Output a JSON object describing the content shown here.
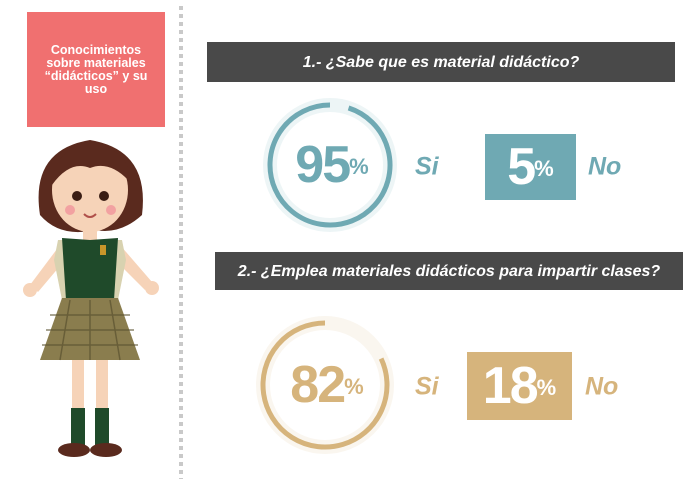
{
  "sidebar_title": "Conocimientos sobre materiales “didácticos” y su uso",
  "questions": [
    {
      "title": "1.- ¿Sabe que es material didáctico?",
      "color": "#6fa9b3",
      "yes": {
        "value": 95,
        "unit": "%",
        "label": "Si"
      },
      "no": {
        "value": 5,
        "unit": "%",
        "label": "No"
      }
    },
    {
      "title": "2.- ¿Emplea materiales didácticos para impartir clases?",
      "color": "#d6b47c",
      "yes": {
        "value": 82,
        "unit": "%",
        "label": "Si"
      },
      "no": {
        "value": 18,
        "unit": "%",
        "label": "No"
      }
    }
  ]
}
